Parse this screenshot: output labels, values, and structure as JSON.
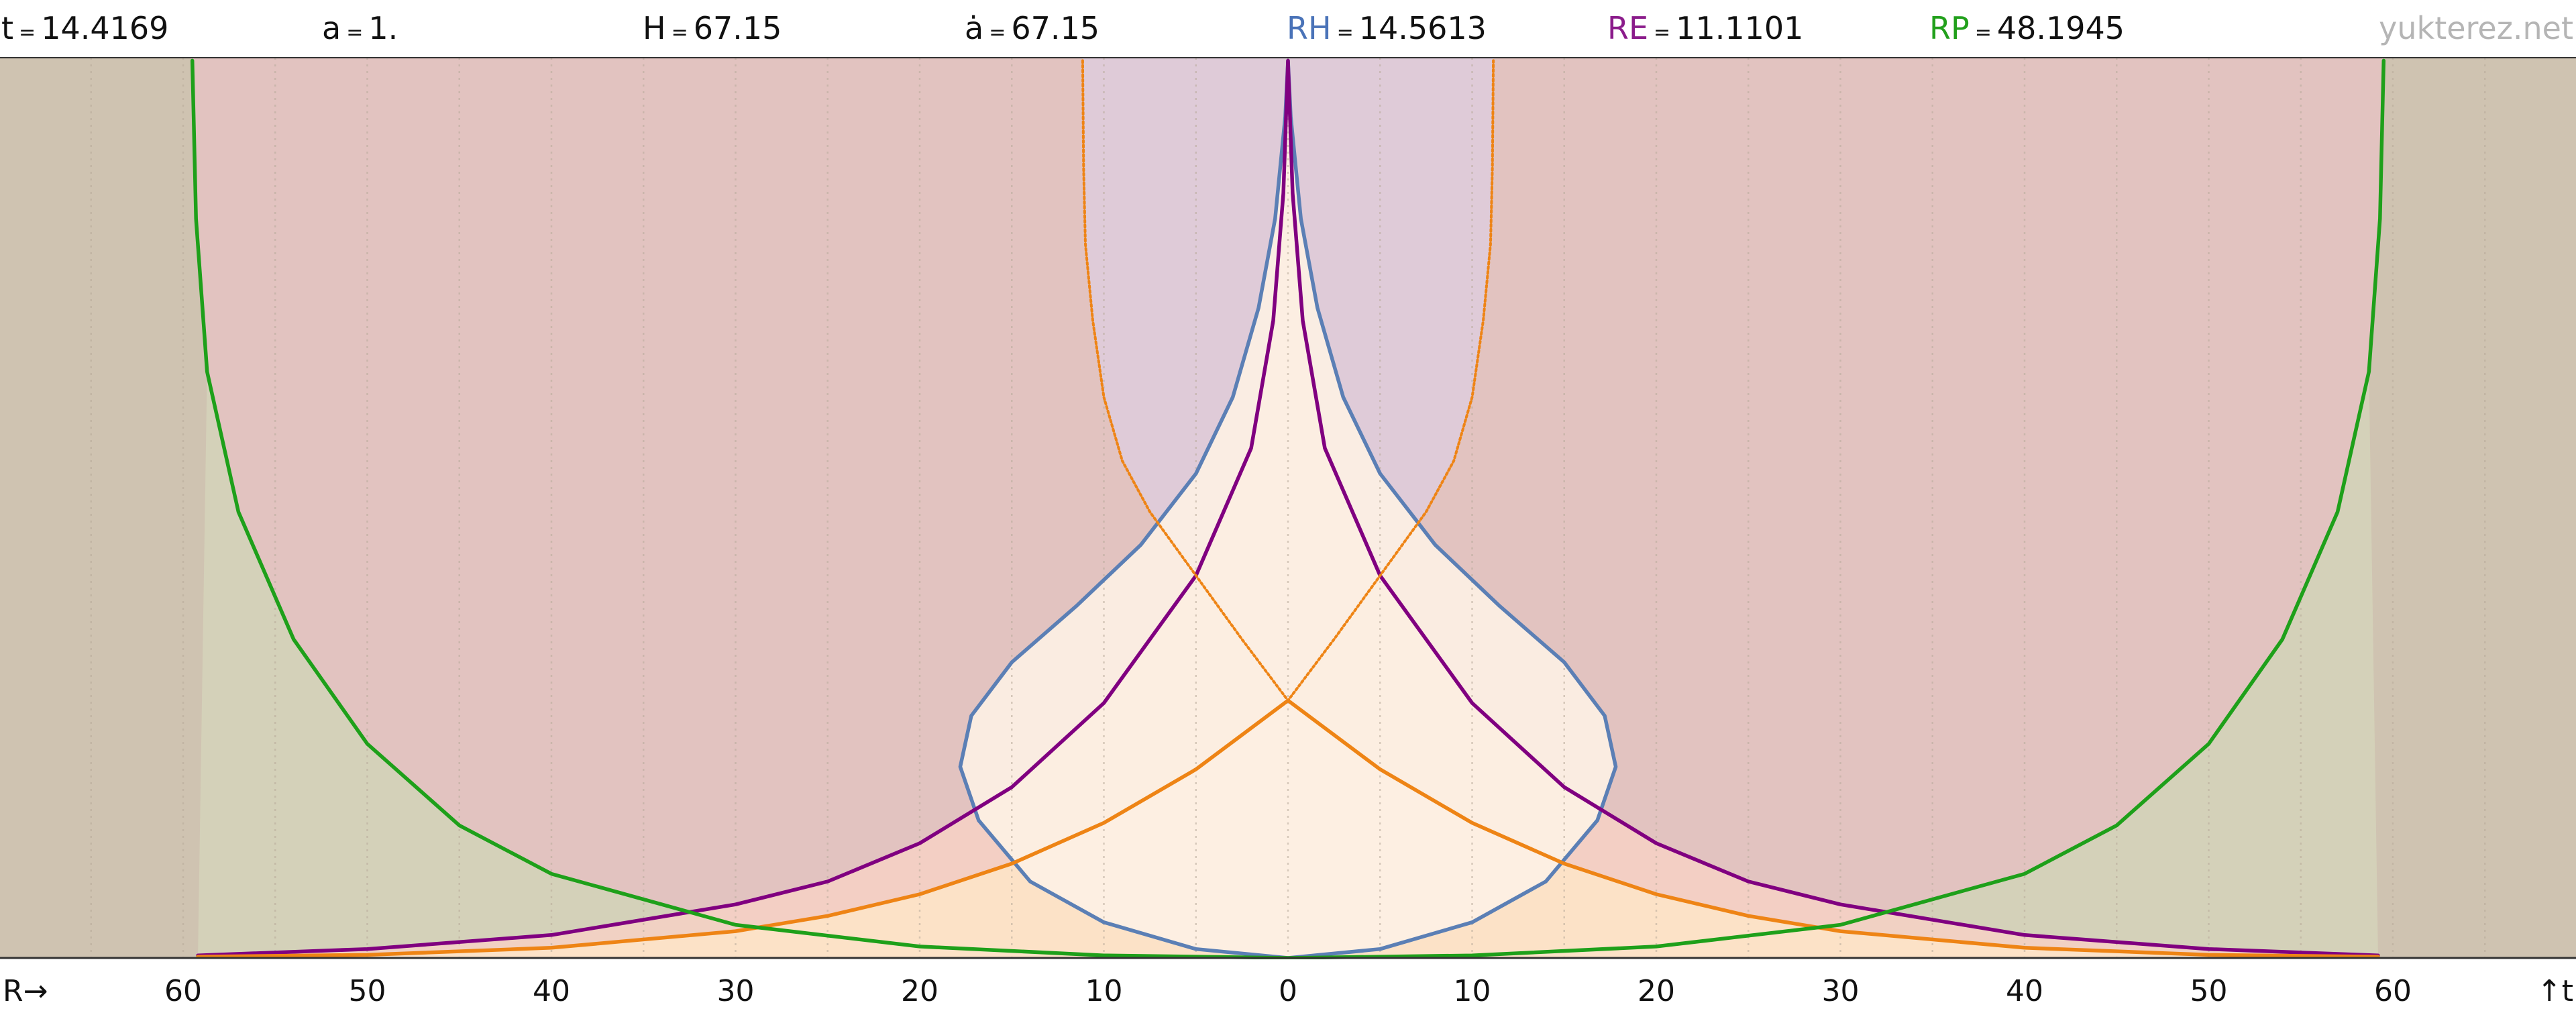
{
  "header": [
    {
      "label": "t",
      "value": "14.4169",
      "color": "#111111"
    },
    {
      "label": "a",
      "value": "1.",
      "color": "#111111"
    },
    {
      "label": "H",
      "value": "67.15",
      "color": "#111111"
    },
    {
      "label": "ȧ",
      "value": "67.15",
      "color": "#111111"
    },
    {
      "label": "RH",
      "value": "14.5613",
      "color": "#4a73b8"
    },
    {
      "label": "RE",
      "value": "11.1101",
      "color": "#8b1c8b"
    },
    {
      "label": "RP",
      "value": "48.1945",
      "color": "#22a01c"
    }
  ],
  "watermark": "yukterez.net",
  "chart_data": {
    "type": "line",
    "xlabel": "R→",
    "ylabel": "↑t",
    "xlim": [
      -70,
      70
    ],
    "x_ticks": [
      -60,
      -50,
      -40,
      -30,
      -20,
      -10,
      0,
      10,
      20,
      30,
      40,
      50,
      60
    ],
    "x_tick_labels": [
      "60",
      "50",
      "40",
      "30",
      "20",
      "10",
      "0",
      "10",
      "20",
      "30",
      "40",
      "50",
      "60"
    ],
    "grid": "vertical dotted every 5",
    "background_color": "#cfc3b1",
    "series": [
      {
        "name": "RH",
        "color": "#5b7fb5",
        "style": "solid",
        "points": [
          [
            0,
            0
          ],
          [
            5,
            0.35
          ],
          [
            10,
            1.4
          ],
          [
            14,
            3.0
          ],
          [
            16.8,
            5.4
          ],
          [
            17.8,
            7.5
          ],
          [
            17.2,
            9.5
          ],
          [
            15.0,
            11.6
          ],
          [
            11.5,
            13.8
          ],
          [
            8.0,
            16.2
          ],
          [
            5.0,
            19.0
          ],
          [
            3.0,
            22.0
          ],
          [
            1.6,
            25.5
          ],
          [
            0.7,
            29.0
          ],
          [
            0.15,
            33.0
          ],
          [
            0,
            35.2
          ]
        ]
      },
      {
        "name": "RE",
        "color": "#800080",
        "style": "solid",
        "points": [
          [
            0,
            35.2
          ],
          [
            0.25,
            30.0
          ],
          [
            0.8,
            25.0
          ],
          [
            2.0,
            20.0
          ],
          [
            5.0,
            15.0
          ],
          [
            10.0,
            10.0
          ],
          [
            15.0,
            6.7
          ],
          [
            20.0,
            4.5
          ],
          [
            25.0,
            3.0
          ],
          [
            30.0,
            2.1
          ],
          [
            40.0,
            0.9
          ],
          [
            50.0,
            0.35
          ],
          [
            59.2,
            0.1
          ]
        ]
      },
      {
        "name": "",
        "color": "#ee8415",
        "style": "solid",
        "points": [
          [
            0,
            10.1
          ],
          [
            5,
            7.4
          ],
          [
            10,
            5.3
          ],
          [
            15,
            3.7
          ],
          [
            20,
            2.5
          ],
          [
            25,
            1.65
          ],
          [
            30,
            1.05
          ],
          [
            40,
            0.4
          ],
          [
            50,
            0.12
          ],
          [
            59.2,
            0.05
          ]
        ]
      },
      {
        "name": "",
        "color": "#ee8415",
        "style": "dotted",
        "points": [
          [
            0,
            10.1
          ],
          [
            2.5,
            12.5
          ],
          [
            5,
            15.0
          ],
          [
            7.5,
            17.5
          ],
          [
            9.0,
            19.5
          ],
          [
            10.0,
            22.0
          ],
          [
            10.6,
            25.0
          ],
          [
            11.0,
            28.0
          ],
          [
            11.1,
            31.0
          ],
          [
            11.15,
            35.2
          ]
        ]
      },
      {
        "name": "RP",
        "color": "#1ea01a",
        "style": "solid",
        "points": [
          [
            0,
            0
          ],
          [
            10,
            0.1
          ],
          [
            20,
            0.45
          ],
          [
            30,
            1.3
          ],
          [
            40,
            3.3
          ],
          [
            45,
            5.2
          ],
          [
            50,
            8.4
          ],
          [
            54,
            12.5
          ],
          [
            57,
            17.5
          ],
          [
            58.7,
            23.0
          ],
          [
            59.3,
            29.0
          ],
          [
            59.5,
            35.2
          ]
        ]
      }
    ]
  }
}
